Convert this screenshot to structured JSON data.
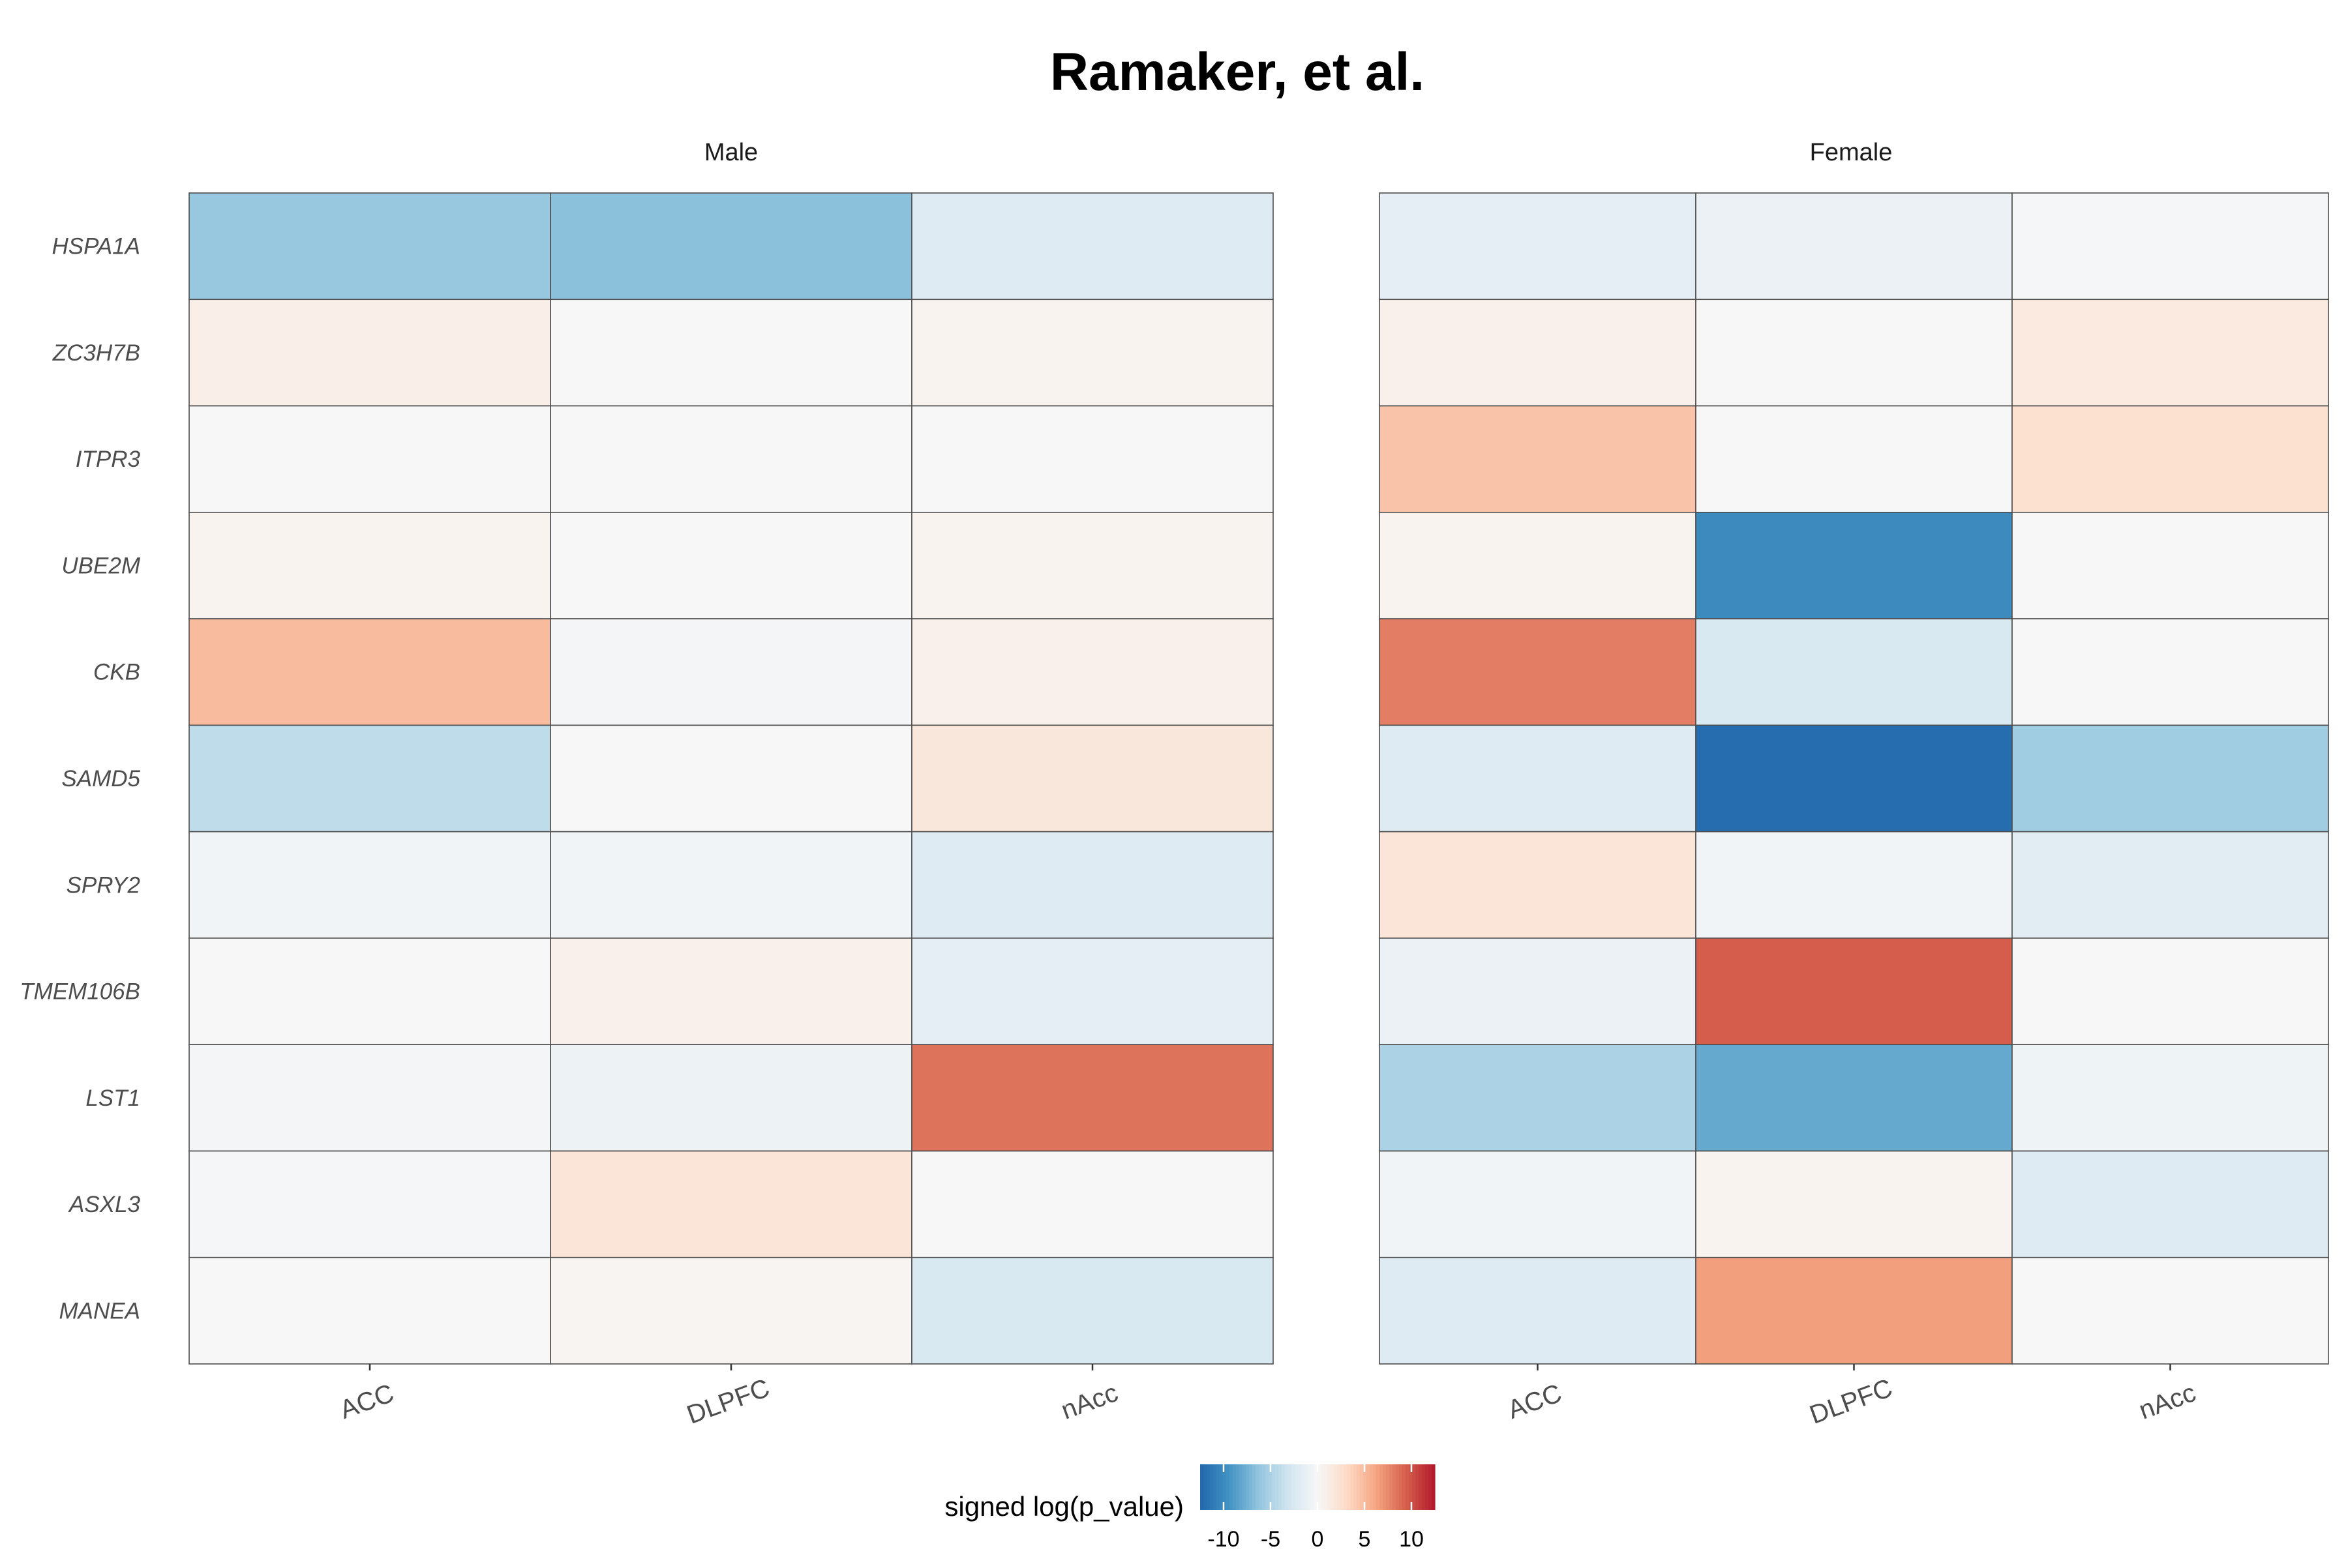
{
  "chart_data": {
    "type": "heatmap",
    "title": "Ramaker, et al.",
    "rows": [
      "HSPA1A",
      "ZC3H7B",
      "ITPR3",
      "UBE2M",
      "CKB",
      "SAMD5",
      "SPRY2",
      "TMEM106B",
      "LST1",
      "ASXL3",
      "MANEA"
    ],
    "columns": [
      "ACC",
      "DLPFC",
      "nAcc"
    ],
    "facets": [
      {
        "name": "Male",
        "values": [
          [
            -6.0,
            -6.5,
            -2.0
          ],
          [
            1.0,
            0.0,
            0.5
          ],
          [
            0.0,
            0.0,
            0.0
          ],
          [
            0.5,
            0.0,
            0.5
          ],
          [
            5.0,
            -0.3,
            0.8
          ],
          [
            -4.0,
            0.0,
            1.8
          ],
          [
            -0.5,
            -0.5,
            -2.0
          ],
          [
            0.0,
            0.8,
            -1.5
          ],
          [
            -0.3,
            -0.8,
            8.5
          ],
          [
            -0.2,
            2.0,
            0.0
          ],
          [
            0.0,
            0.3,
            -2.5
          ]
        ]
      },
      {
        "name": "Female",
        "values": [
          [
            -1.5,
            -1.0,
            -0.2
          ],
          [
            0.8,
            0.0,
            1.5
          ],
          [
            4.5,
            0.0,
            2.5
          ],
          [
            0.5,
            -10.0,
            0.0
          ],
          [
            8.0,
            -2.5,
            0.0
          ],
          [
            -2.0,
            -12.0,
            -5.5
          ],
          [
            2.0,
            -0.5,
            -1.8
          ],
          [
            -1.0,
            9.5,
            0.0
          ],
          [
            -5.0,
            -8.0,
            -0.7
          ],
          [
            -0.5,
            0.5,
            -2.0
          ],
          [
            -2.0,
            6.5,
            0.0
          ]
        ]
      }
    ],
    "legend": {
      "title": "signed log(p_value)",
      "ticks": [
        -10,
        -5,
        0,
        5,
        10
      ],
      "range": [
        -12.5,
        12.5
      ],
      "position": "bottom"
    },
    "colors": {
      "low": "#2166ac",
      "mid": "#f7f7f7",
      "high": "#b2182b",
      "scheme": "RdBu diverging"
    }
  }
}
